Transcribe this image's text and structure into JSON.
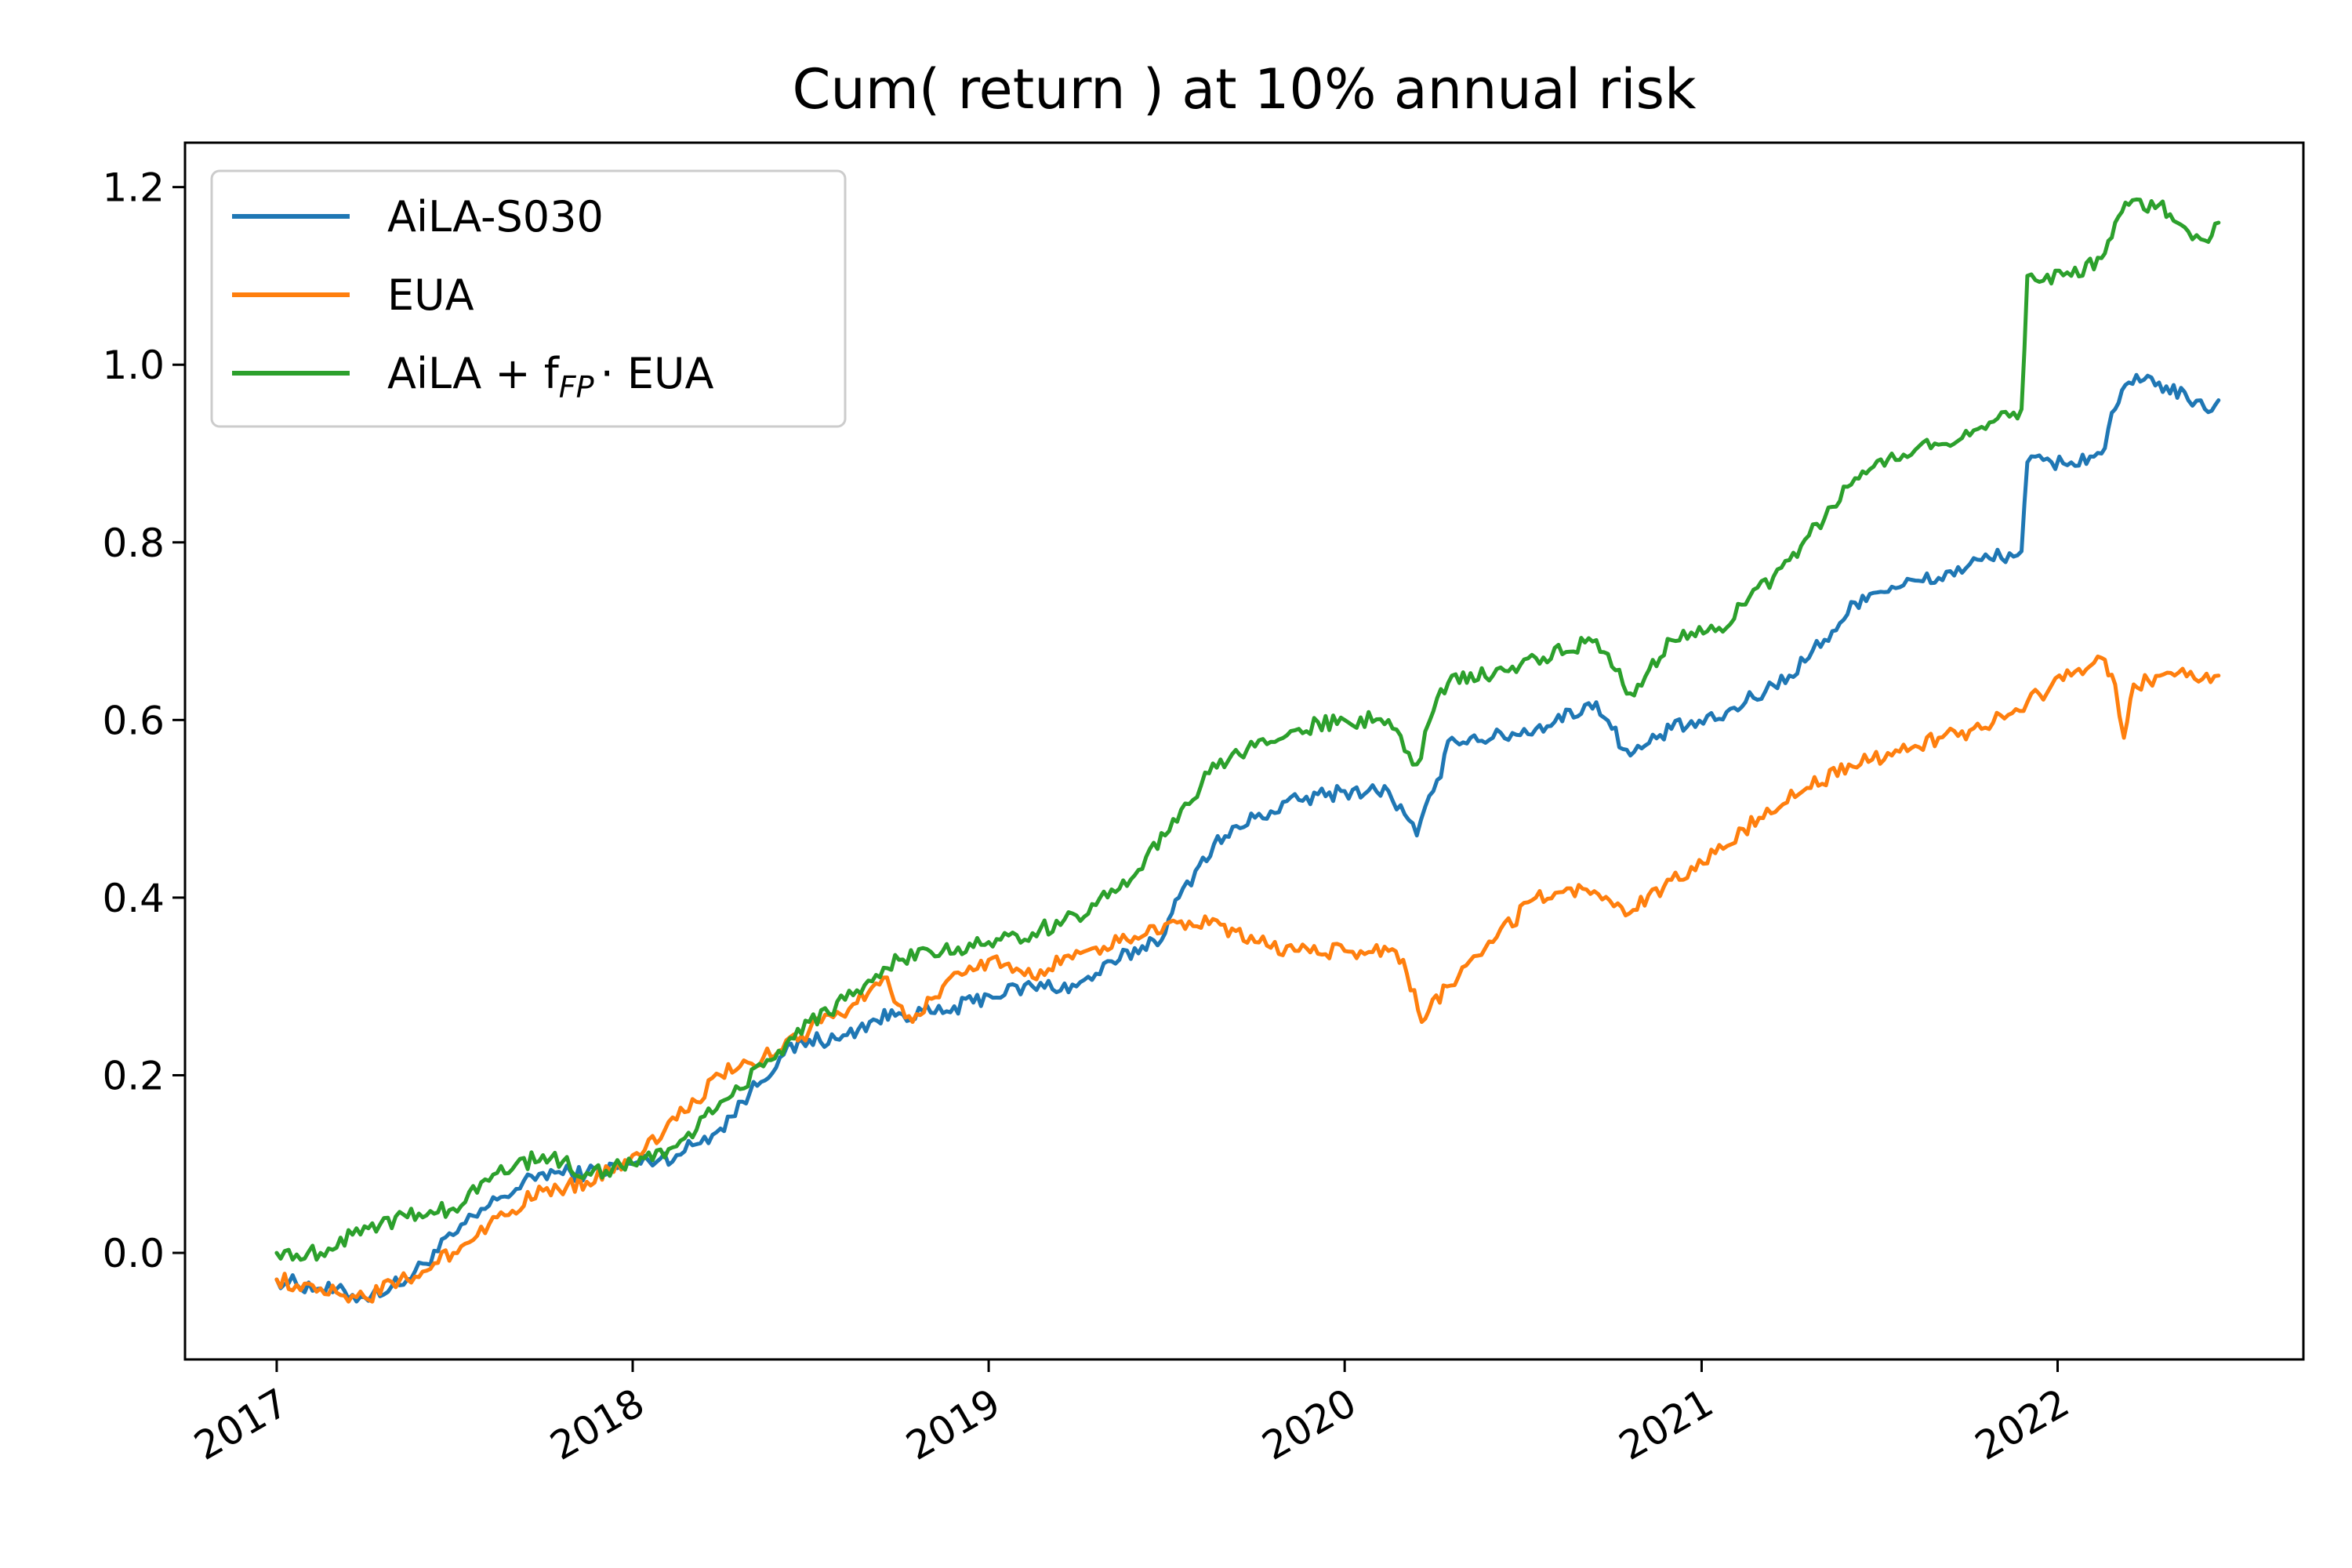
{
  "chart_data": {
    "type": "line",
    "title": "Cum( return ) at 10% annual risk",
    "xlabel": "",
    "ylabel": "",
    "xlim": [
      "2016-09-29",
      "2022-09-10"
    ],
    "ylim": [
      -0.12,
      1.25
    ],
    "x_ticks": [
      "2017",
      "2018",
      "2019",
      "2020",
      "2021",
      "2022"
    ],
    "y_ticks": [
      "0.0",
      "0.2",
      "0.4",
      "0.6",
      "0.8",
      "1.0",
      "1.2"
    ],
    "grid": false,
    "legend_position": "top-left",
    "series": [
      {
        "name": "AiLA-S030",
        "legend_main": "AiLA-S030",
        "legend_sub": "",
        "legend_tail": "",
        "color": "#1f77b4",
        "points": [
          [
            "2017-01-01",
            -0.03
          ],
          [
            "2017-02-15",
            -0.04
          ],
          [
            "2017-04-01",
            -0.05
          ],
          [
            "2017-05-15",
            -0.03
          ],
          [
            "2017-07-01",
            0.02
          ],
          [
            "2017-08-15",
            0.06
          ],
          [
            "2017-10-01",
            0.09
          ],
          [
            "2017-11-15",
            0.09
          ],
          [
            "2018-01-01",
            0.1
          ],
          [
            "2018-02-15",
            0.11
          ],
          [
            "2018-04-01",
            0.14
          ],
          [
            "2018-05-01",
            0.18
          ],
          [
            "2018-06-01",
            0.22
          ],
          [
            "2018-07-01",
            0.24
          ],
          [
            "2018-08-01",
            0.24
          ],
          [
            "2018-09-01",
            0.26
          ],
          [
            "2018-10-01",
            0.27
          ],
          [
            "2018-11-15",
            0.27
          ],
          [
            "2019-01-01",
            0.29
          ],
          [
            "2019-02-15",
            0.3
          ],
          [
            "2019-04-01",
            0.3
          ],
          [
            "2019-05-15",
            0.33
          ],
          [
            "2019-07-01",
            0.36
          ],
          [
            "2019-07-15",
            0.4
          ],
          [
            "2019-08-01",
            0.43
          ],
          [
            "2019-08-20",
            0.46
          ],
          [
            "2019-10-01",
            0.49
          ],
          [
            "2019-11-15",
            0.51
          ],
          [
            "2020-01-01",
            0.52
          ],
          [
            "2020-02-15",
            0.52
          ],
          [
            "2020-03-15",
            0.47
          ],
          [
            "2020-04-01",
            0.52
          ],
          [
            "2020-04-20",
            0.58
          ],
          [
            "2020-06-01",
            0.58
          ],
          [
            "2020-07-15",
            0.59
          ],
          [
            "2020-09-15",
            0.62
          ],
          [
            "2020-10-01",
            0.59
          ],
          [
            "2020-10-20",
            0.56
          ],
          [
            "2020-12-01",
            0.59
          ],
          [
            "2021-01-15",
            0.6
          ],
          [
            "2021-02-15",
            0.62
          ],
          [
            "2021-04-01",
            0.65
          ],
          [
            "2021-05-15",
            0.7
          ],
          [
            "2021-06-15",
            0.74
          ],
          [
            "2021-07-15",
            0.75
          ],
          [
            "2021-09-01",
            0.76
          ],
          [
            "2021-10-15",
            0.78
          ],
          [
            "2021-11-25",
            0.79
          ],
          [
            "2021-12-01",
            0.89
          ],
          [
            "2022-01-15",
            0.89
          ],
          [
            "2022-02-15",
            0.9
          ],
          [
            "2022-03-01",
            0.95
          ],
          [
            "2022-03-15",
            0.98
          ],
          [
            "2022-04-15",
            0.98
          ],
          [
            "2022-05-15",
            0.96
          ],
          [
            "2022-06-01",
            0.95
          ],
          [
            "2022-06-15",
            0.96
          ]
        ]
      },
      {
        "name": "EUA",
        "legend_main": "EUA",
        "legend_sub": "",
        "legend_tail": "",
        "color": "#ff7f0e",
        "points": [
          [
            "2017-01-01",
            -0.03
          ],
          [
            "2017-02-15",
            -0.04
          ],
          [
            "2017-04-01",
            -0.05
          ],
          [
            "2017-05-15",
            -0.03
          ],
          [
            "2017-07-01",
            0.0
          ],
          [
            "2017-08-15",
            0.04
          ],
          [
            "2017-10-01",
            0.07
          ],
          [
            "2017-11-15",
            0.08
          ],
          [
            "2018-01-01",
            0.11
          ],
          [
            "2018-02-15",
            0.15
          ],
          [
            "2018-04-01",
            0.2
          ],
          [
            "2018-05-15",
            0.22
          ],
          [
            "2018-07-01",
            0.25
          ],
          [
            "2018-08-15",
            0.28
          ],
          [
            "2018-09-15",
            0.31
          ],
          [
            "2018-10-15",
            0.26
          ],
          [
            "2018-11-15",
            0.3
          ],
          [
            "2019-01-01",
            0.33
          ],
          [
            "2019-02-15",
            0.31
          ],
          [
            "2019-04-01",
            0.34
          ],
          [
            "2019-05-15",
            0.35
          ],
          [
            "2019-07-01",
            0.37
          ],
          [
            "2019-08-15",
            0.37
          ],
          [
            "2019-10-01",
            0.35
          ],
          [
            "2019-11-15",
            0.34
          ],
          [
            "2020-01-01",
            0.34
          ],
          [
            "2020-02-15",
            0.34
          ],
          [
            "2020-03-01",
            0.33
          ],
          [
            "2020-03-20",
            0.26
          ],
          [
            "2020-04-15",
            0.3
          ],
          [
            "2020-06-01",
            0.35
          ],
          [
            "2020-07-15",
            0.4
          ],
          [
            "2020-09-01",
            0.41
          ],
          [
            "2020-10-15",
            0.38
          ],
          [
            "2020-12-01",
            0.42
          ],
          [
            "2021-01-15",
            0.45
          ],
          [
            "2021-03-01",
            0.49
          ],
          [
            "2021-04-15",
            0.52
          ],
          [
            "2021-06-01",
            0.55
          ],
          [
            "2021-07-15",
            0.56
          ],
          [
            "2021-09-01",
            0.58
          ],
          [
            "2021-10-15",
            0.59
          ],
          [
            "2021-12-01",
            0.62
          ],
          [
            "2022-01-15",
            0.65
          ],
          [
            "2022-02-15",
            0.67
          ],
          [
            "2022-03-01",
            0.64
          ],
          [
            "2022-03-10",
            0.58
          ],
          [
            "2022-03-20",
            0.64
          ],
          [
            "2022-05-01",
            0.65
          ],
          [
            "2022-06-15",
            0.65
          ]
        ]
      },
      {
        "name": "AiLA + f_FP · EUA",
        "legend_main": "AiLA + f",
        "legend_sub": "FP",
        "legend_tail": "· EUA",
        "color": "#2ca02c",
        "points": [
          [
            "2017-01-01",
            0.0
          ],
          [
            "2017-02-15",
            0.0
          ],
          [
            "2017-04-01",
            0.03
          ],
          [
            "2017-05-15",
            0.04
          ],
          [
            "2017-07-01",
            0.05
          ],
          [
            "2017-08-15",
            0.09
          ],
          [
            "2017-10-01",
            0.11
          ],
          [
            "2017-11-15",
            0.09
          ],
          [
            "2018-01-01",
            0.1
          ],
          [
            "2018-02-15",
            0.12
          ],
          [
            "2018-04-01",
            0.17
          ],
          [
            "2018-05-15",
            0.21
          ],
          [
            "2018-07-01",
            0.26
          ],
          [
            "2018-08-15",
            0.29
          ],
          [
            "2018-10-01",
            0.33
          ],
          [
            "2018-11-15",
            0.34
          ],
          [
            "2019-01-01",
            0.35
          ],
          [
            "2019-02-15",
            0.36
          ],
          [
            "2019-04-01",
            0.38
          ],
          [
            "2019-05-15",
            0.41
          ],
          [
            "2019-07-01",
            0.47
          ],
          [
            "2019-08-15",
            0.54
          ],
          [
            "2019-10-01",
            0.57
          ],
          [
            "2019-11-15",
            0.59
          ],
          [
            "2020-01-01",
            0.6
          ],
          [
            "2020-02-15",
            0.6
          ],
          [
            "2020-03-15",
            0.55
          ],
          [
            "2020-04-01",
            0.61
          ],
          [
            "2020-04-20",
            0.65
          ],
          [
            "2020-06-01",
            0.65
          ],
          [
            "2020-07-15",
            0.67
          ],
          [
            "2020-09-15",
            0.69
          ],
          [
            "2020-10-01",
            0.66
          ],
          [
            "2020-10-20",
            0.63
          ],
          [
            "2020-12-01",
            0.69
          ],
          [
            "2021-01-15",
            0.7
          ],
          [
            "2021-02-15",
            0.73
          ],
          [
            "2021-04-01",
            0.78
          ],
          [
            "2021-05-15",
            0.84
          ],
          [
            "2021-06-15",
            0.88
          ],
          [
            "2021-07-15",
            0.9
          ],
          [
            "2021-09-01",
            0.91
          ],
          [
            "2021-10-15",
            0.93
          ],
          [
            "2021-11-25",
            0.95
          ],
          [
            "2021-12-01",
            1.1
          ],
          [
            "2022-01-15",
            1.1
          ],
          [
            "2022-02-15",
            1.12
          ],
          [
            "2022-03-01",
            1.16
          ],
          [
            "2022-03-15",
            1.18
          ],
          [
            "2022-04-15",
            1.18
          ],
          [
            "2022-05-15",
            1.15
          ],
          [
            "2022-06-01",
            1.14
          ],
          [
            "2022-06-15",
            1.16
          ]
        ]
      }
    ]
  }
}
